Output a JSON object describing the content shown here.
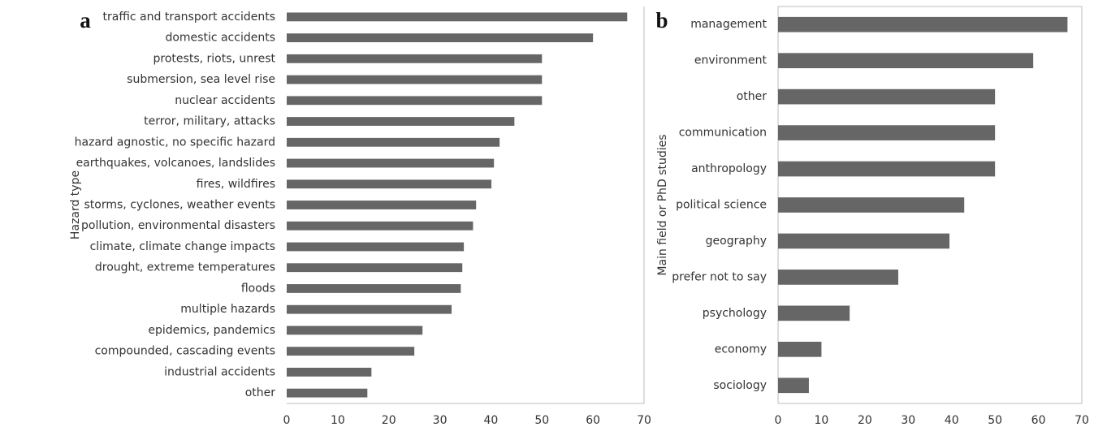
{
  "chart_data": [
    {
      "type": "barh",
      "panel_label": "a",
      "ylabel": "Hazard type",
      "categories": [
        "traffic and transport accidents",
        "domestic accidents",
        "protests, riots, unrest",
        "submersion, sea level rise",
        "nuclear accidents",
        "terror, military, attacks",
        "hazard agnostic, no specific hazard",
        "earthquakes, volcanoes, landslides",
        "fires, wildfires",
        "storms, cyclones, weather events",
        "pollution, environmental disasters",
        "climate, climate change impacts",
        "drought, extreme temperatures",
        "floods",
        "multiple hazards",
        "epidemics, pandemics",
        "compounded, cascading events",
        "industrial accidents",
        "other"
      ],
      "values": [
        66.7,
        60,
        50,
        50,
        50,
        44.6,
        41.7,
        40.6,
        40.1,
        37.1,
        36.5,
        34.7,
        34.4,
        34.1,
        32.3,
        26.6,
        25,
        16.6,
        15.8
      ],
      "color": "#666666",
      "xlim": [
        0,
        70
      ],
      "xticks": [
        0,
        10,
        20,
        30,
        40,
        50,
        60,
        70
      ]
    },
    {
      "type": "barh",
      "panel_label": "b",
      "ylabel": "Main field or PhD studies",
      "categories": [
        "management",
        "environment",
        "other",
        "communication",
        "anthropology",
        "political science",
        "geography",
        "prefer not to say",
        "psychology",
        "economy",
        "sociology"
      ],
      "values": [
        66.7,
        58.8,
        50,
        50,
        50,
        42.9,
        39.5,
        27.7,
        16.5,
        10,
        7.1
      ],
      "color": "#666666",
      "xlim": [
        0,
        70
      ],
      "xticks": [
        0,
        10,
        20,
        30,
        40,
        50,
        60,
        70
      ]
    }
  ]
}
